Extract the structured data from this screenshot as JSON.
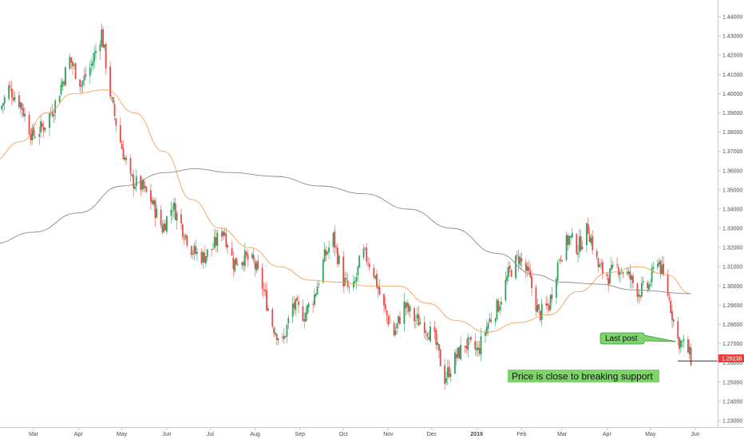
{
  "chart_data": {
    "type": "candlestick",
    "title": "",
    "xlabel": "",
    "ylabel": "",
    "ylim": [
      1.225,
      1.445
    ],
    "y_ticks": [
      "1.23000",
      "1.24000",
      "1.25000",
      "1.26000",
      "1.27000",
      "1.28000",
      "1.29000",
      "1.30000",
      "1.31000",
      "1.32000",
      "1.33000",
      "1.34000",
      "1.35000",
      "1.36000",
      "1.37000",
      "1.38000",
      "1.39000",
      "1.40000",
      "1.41000",
      "1.42000",
      "1.43000",
      "1.44000"
    ],
    "x_ticks": [
      {
        "label": "Mar",
        "date": "2018-03-01",
        "bold": false
      },
      {
        "label": "Apr",
        "date": "2018-04-01",
        "bold": false
      },
      {
        "label": "May",
        "date": "2018-05-01",
        "bold": false
      },
      {
        "label": "Jun",
        "date": "2018-06-01",
        "bold": false
      },
      {
        "label": "Jul",
        "date": "2018-07-01",
        "bold": false
      },
      {
        "label": "Aug",
        "date": "2018-08-01",
        "bold": false
      },
      {
        "label": "Sep",
        "date": "2018-09-01",
        "bold": false
      },
      {
        "label": "Oct",
        "date": "2018-10-01",
        "bold": false
      },
      {
        "label": "Nov",
        "date": "2018-11-01",
        "bold": false
      },
      {
        "label": "Dec",
        "date": "2018-12-01",
        "bold": false
      },
      {
        "label": "2019",
        "date": "2019-01-01",
        "bold": true
      },
      {
        "label": "Feb",
        "date": "2019-02-01",
        "bold": false
      },
      {
        "label": "Mar",
        "date": "2019-03-01",
        "bold": false
      },
      {
        "label": "Apr",
        "date": "2019-04-01",
        "bold": false
      },
      {
        "label": "May",
        "date": "2019-05-01",
        "bold": false
      },
      {
        "label": "Jun",
        "date": "2019-06-01",
        "bold": false
      }
    ],
    "close_path": [
      [
        "2018-02-05",
        1.39
      ],
      [
        "2018-02-12",
        1.403
      ],
      [
        "2018-02-20",
        1.395
      ],
      [
        "2018-02-28",
        1.378
      ],
      [
        "2018-03-08",
        1.383
      ],
      [
        "2018-03-16",
        1.395
      ],
      [
        "2018-03-26",
        1.418
      ],
      [
        "2018-04-03",
        1.405
      ],
      [
        "2018-04-10",
        1.415
      ],
      [
        "2018-04-17",
        1.432
      ],
      [
        "2018-04-24",
        1.395
      ],
      [
        "2018-04-30",
        1.375
      ],
      [
        "2018-05-07",
        1.355
      ],
      [
        "2018-05-14",
        1.352
      ],
      [
        "2018-05-21",
        1.345
      ],
      [
        "2018-05-29",
        1.33
      ],
      [
        "2018-06-05",
        1.342
      ],
      [
        "2018-06-12",
        1.33
      ],
      [
        "2018-06-19",
        1.318
      ],
      [
        "2018-06-26",
        1.315
      ],
      [
        "2018-07-03",
        1.32
      ],
      [
        "2018-07-10",
        1.33
      ],
      [
        "2018-07-17",
        1.312
      ],
      [
        "2018-07-24",
        1.315
      ],
      [
        "2018-07-31",
        1.312
      ],
      [
        "2018-08-06",
        1.3
      ],
      [
        "2018-08-13",
        1.28
      ],
      [
        "2018-08-20",
        1.27
      ],
      [
        "2018-08-27",
        1.29
      ],
      [
        "2018-09-04",
        1.285
      ],
      [
        "2018-09-11",
        1.295
      ],
      [
        "2018-09-18",
        1.315
      ],
      [
        "2018-09-24",
        1.325
      ],
      [
        "2018-10-01",
        1.303
      ],
      [
        "2018-10-07",
        1.295
      ],
      [
        "2018-10-14",
        1.318
      ],
      [
        "2018-10-21",
        1.31
      ],
      [
        "2018-10-28",
        1.29
      ],
      [
        "2018-11-05",
        1.275
      ],
      [
        "2018-11-12",
        1.29
      ],
      [
        "2018-11-19",
        1.283
      ],
      [
        "2018-11-26",
        1.28
      ],
      [
        "2018-12-03",
        1.272
      ],
      [
        "2018-12-10",
        1.252
      ],
      [
        "2018-12-17",
        1.262
      ],
      [
        "2018-12-24",
        1.27
      ],
      [
        "2019-01-02",
        1.266
      ],
      [
        "2019-01-09",
        1.281
      ],
      [
        "2019-01-16",
        1.29
      ],
      [
        "2019-01-23",
        1.306
      ],
      [
        "2019-01-30",
        1.315
      ],
      [
        "2019-02-06",
        1.305
      ],
      [
        "2019-02-13",
        1.285
      ],
      [
        "2019-02-20",
        1.29
      ],
      [
        "2019-02-27",
        1.315
      ],
      [
        "2019-03-06",
        1.325
      ],
      [
        "2019-03-12",
        1.32
      ],
      [
        "2019-03-19",
        1.33
      ],
      [
        "2019-03-26",
        1.31
      ],
      [
        "2019-04-02",
        1.305
      ],
      [
        "2019-04-09",
        1.31
      ],
      [
        "2019-04-16",
        1.305
      ],
      [
        "2019-04-23",
        1.297
      ],
      [
        "2019-04-30",
        1.3
      ],
      [
        "2019-05-06",
        1.315
      ],
      [
        "2019-05-13",
        1.296
      ],
      [
        "2019-05-20",
        1.272
      ],
      [
        "2019-05-26",
        1.268
      ],
      [
        "2019-05-29",
        1.262
      ]
    ],
    "series": [
      {
        "type": "moving-average",
        "color": "#f5a15a",
        "points": [
          [
            "2018-02-01",
            1.365
          ],
          [
            "2018-02-20",
            1.375
          ],
          [
            "2018-03-10",
            1.39
          ],
          [
            "2018-03-28",
            1.4
          ],
          [
            "2018-04-20",
            1.402
          ],
          [
            "2018-05-10",
            1.39
          ],
          [
            "2018-05-30",
            1.37
          ],
          [
            "2018-06-18",
            1.345
          ],
          [
            "2018-07-08",
            1.33
          ],
          [
            "2018-07-28",
            1.32
          ],
          [
            "2018-08-18",
            1.31
          ],
          [
            "2018-09-08",
            1.303
          ],
          [
            "2018-09-28",
            1.302
          ],
          [
            "2018-10-18",
            1.3
          ],
          [
            "2018-11-08",
            1.3
          ],
          [
            "2018-11-28",
            1.291
          ],
          [
            "2018-12-18",
            1.282
          ],
          [
            "2019-01-08",
            1.276
          ],
          [
            "2019-01-30",
            1.281
          ],
          [
            "2019-02-20",
            1.285
          ],
          [
            "2019-03-12",
            1.297
          ],
          [
            "2019-04-02",
            1.307
          ],
          [
            "2019-04-22",
            1.31
          ],
          [
            "2019-05-12",
            1.306
          ],
          [
            "2019-05-29",
            1.296
          ]
        ]
      },
      {
        "type": "moving-average",
        "color": "#8a8a8a",
        "points": [
          [
            "2018-02-01",
            1.322
          ],
          [
            "2018-03-01",
            1.328
          ],
          [
            "2018-04-01",
            1.338
          ],
          [
            "2018-05-01",
            1.352
          ],
          [
            "2018-06-01",
            1.359
          ],
          [
            "2018-06-20",
            1.361
          ],
          [
            "2018-07-15",
            1.359
          ],
          [
            "2018-08-15",
            1.357
          ],
          [
            "2018-09-15",
            1.352
          ],
          [
            "2018-10-15",
            1.348
          ],
          [
            "2018-11-15",
            1.34
          ],
          [
            "2018-12-15",
            1.33
          ],
          [
            "2019-01-15",
            1.317
          ],
          [
            "2019-02-10",
            1.306
          ],
          [
            "2019-03-01",
            1.302
          ],
          [
            "2019-03-25",
            1.301
          ],
          [
            "2019-04-20",
            1.298
          ],
          [
            "2019-05-29",
            1.296
          ]
        ]
      }
    ],
    "support_line": {
      "price": 1.261,
      "from": "2019-05-20",
      "to": "2019-06-17"
    },
    "annotations": [
      {
        "id": "last-post",
        "text": "Last post",
        "fill": "#7fd36b",
        "stroke": "#2f9e3a",
        "anchor_date": "2019-05-22",
        "anchor_price": 1.2715
      },
      {
        "id": "support-note",
        "text": "Price is close to breaking support",
        "fill": "#7fd36b"
      }
    ],
    "price_label": {
      "text": "1.26238",
      "value": 1.26238,
      "color": "#e8413b"
    },
    "colors": {
      "up": "#2ea15b",
      "down": "#e84a4a",
      "axis_text": "#4a4a4a",
      "axis_line": "#c8c8c8"
    },
    "grid": false
  }
}
